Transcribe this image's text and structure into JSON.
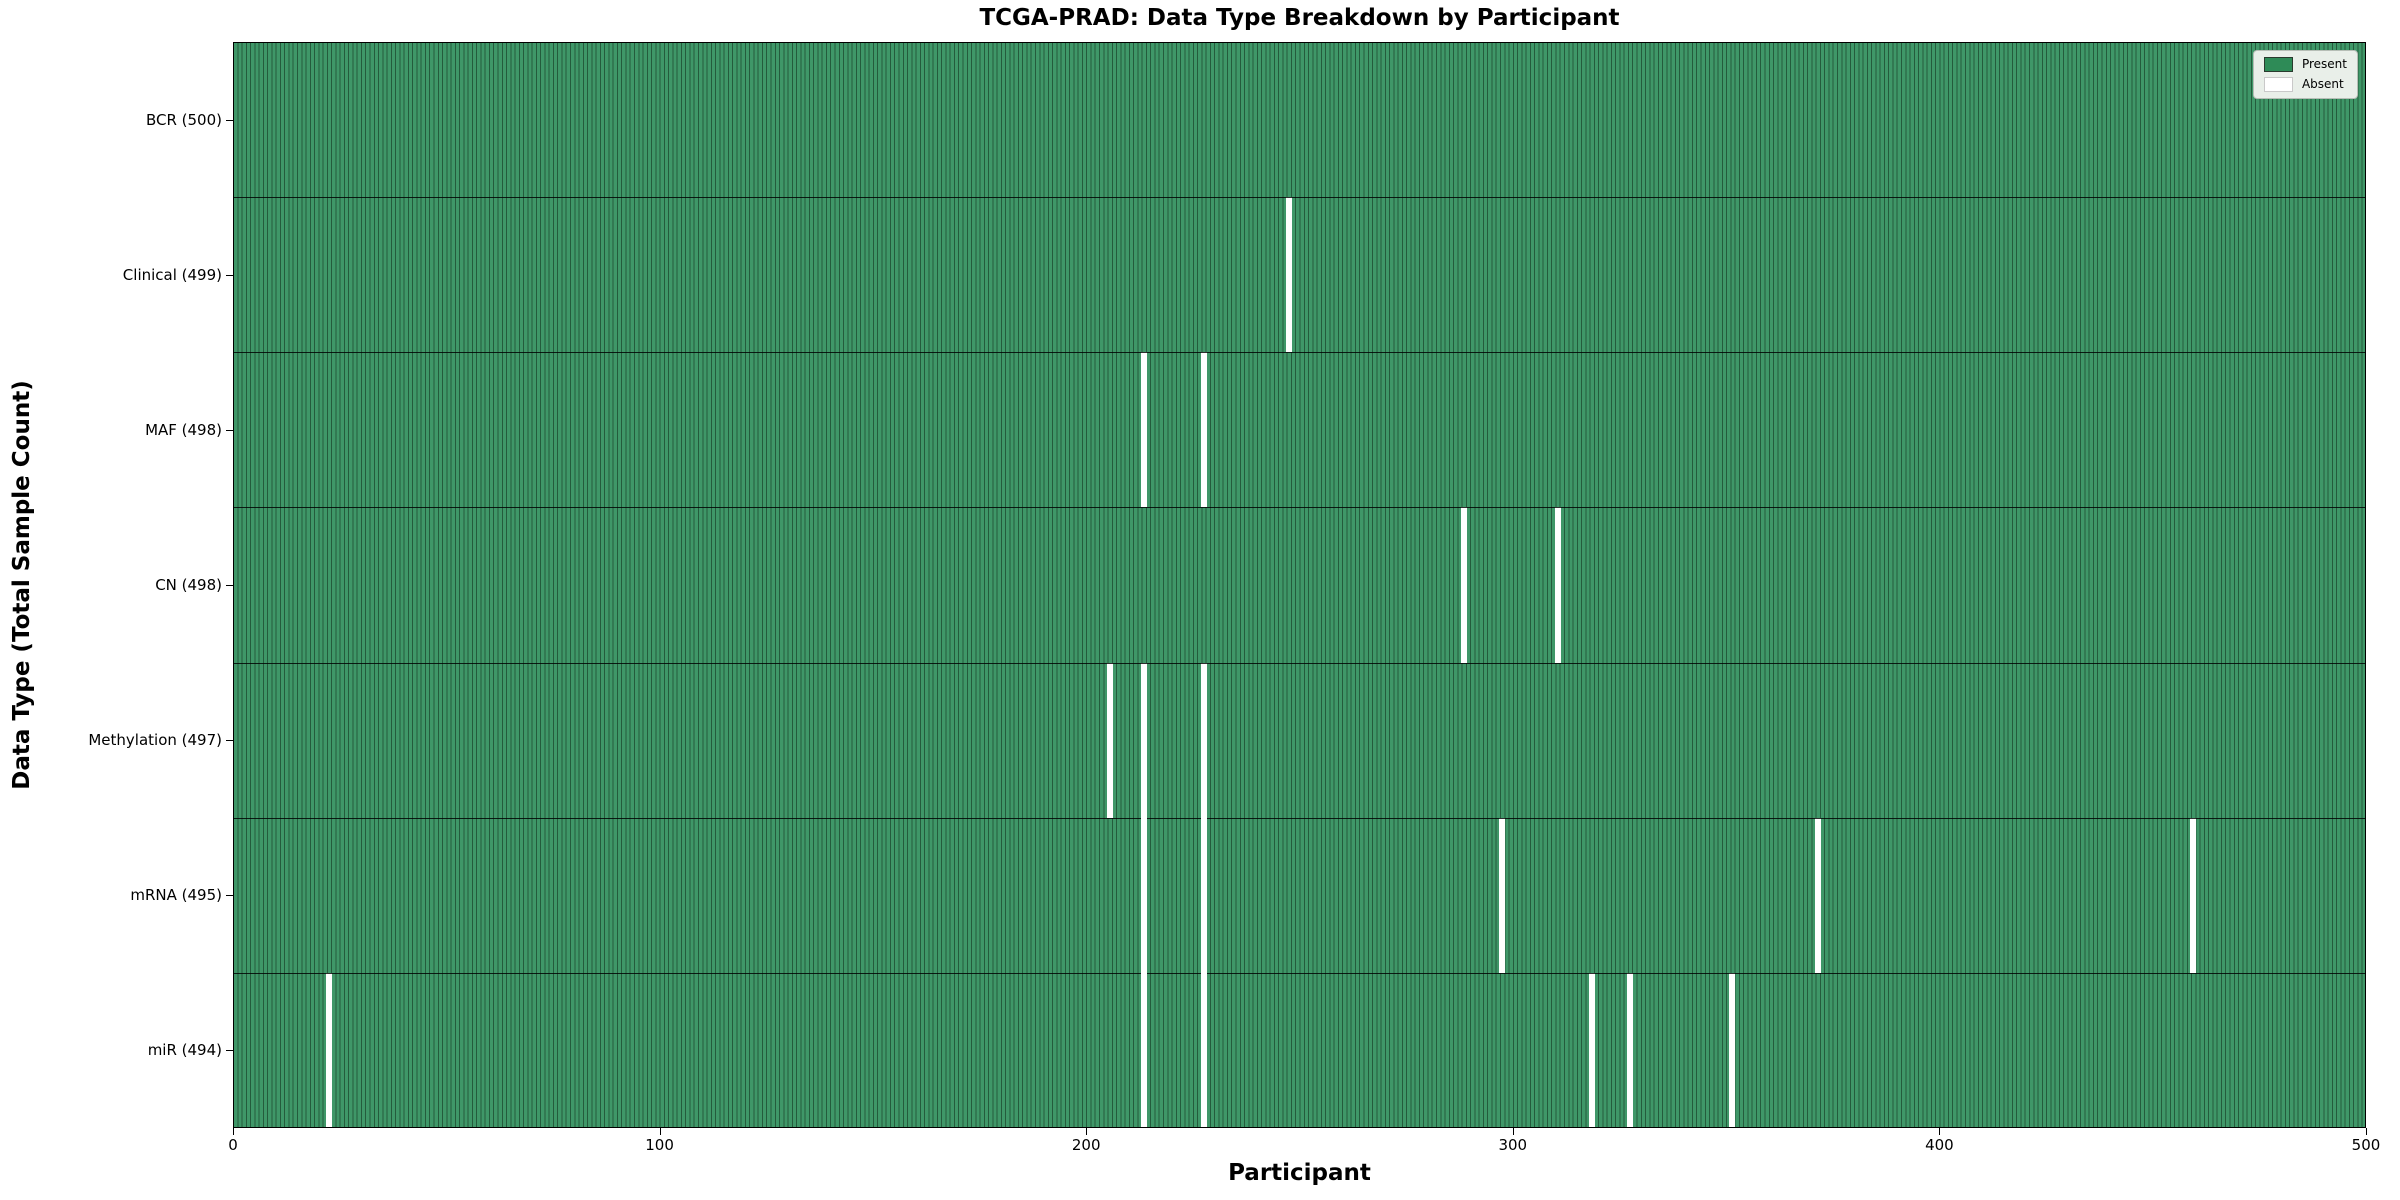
{
  "chart_data": {
    "type": "heatmap",
    "title": "TCGA-PRAD: Data Type Breakdown by Participant",
    "xlabel": "Participant",
    "ylabel": "Data Type (Total Sample Count)",
    "xlim": [
      0,
      500
    ],
    "x_ticks": [
      0,
      100,
      200,
      300,
      400,
      500
    ],
    "n_participants": 500,
    "grid": false,
    "legend_position": "upper right",
    "legend": [
      {
        "label": "Present",
        "color": "#2e8b57"
      },
      {
        "label": "Absent",
        "color": "#ffffff"
      }
    ],
    "colors": {
      "present": "#2e8b57",
      "absent": "#ffffff",
      "bar_edge": "#1c4d31",
      "row_divider": "#0d0d0d"
    },
    "rows": [
      {
        "label": "BCR (500)",
        "data_type": "BCR",
        "total": 500,
        "absent_participants": []
      },
      {
        "label": "Clinical (499)",
        "data_type": "Clinical",
        "total": 499,
        "absent_participants": [
          247
        ]
      },
      {
        "label": "MAF (498)",
        "data_type": "MAF",
        "total": 498,
        "absent_participants": [
          213,
          227
        ]
      },
      {
        "label": "CN (498)",
        "data_type": "CN",
        "total": 498,
        "absent_participants": [
          288,
          310
        ]
      },
      {
        "label": "Methylation (497)",
        "data_type": "Methylation",
        "total": 497,
        "absent_participants": [
          205,
          213,
          227
        ]
      },
      {
        "label": "mRNA (495)",
        "data_type": "mRNA",
        "total": 495,
        "absent_participants": [
          213,
          227,
          297,
          371,
          459
        ]
      },
      {
        "label": "miR (494)",
        "data_type": "miR",
        "total": 494,
        "absent_participants": [
          22,
          213,
          227,
          318,
          327,
          351
        ]
      }
    ]
  }
}
